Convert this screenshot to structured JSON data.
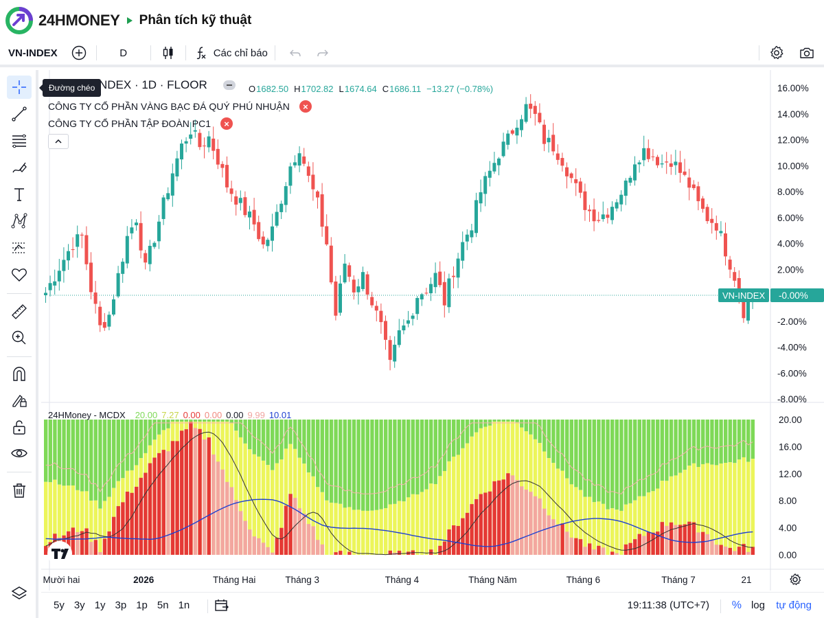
{
  "header": {
    "logo_text": "24HMONEY",
    "page_title": "Phân tích kỹ thuật"
  },
  "toolbar": {
    "symbol": "VN-INDEX",
    "interval": "D",
    "indicators_label": "Các chỉ báo"
  },
  "sidebar": {
    "tooltip": "Đường chéo",
    "tools": [
      "crosshair-icon",
      "trend-line-icon",
      "fib-icon",
      "brush-icon",
      "text-icon",
      "pattern-icon",
      "prediction-icon",
      "favorite-icon",
      "ruler-icon",
      "zoom-in-icon",
      "magnet-icon",
      "lock-draw-icon",
      "unlock-icon",
      "eye-icon",
      "trash-icon",
      "layers-icon"
    ]
  },
  "legend": {
    "symbol_title": "VN-INDEX · 1D · FLOOR",
    "ohlc": [
      {
        "key": "O",
        "value": "1682.50"
      },
      {
        "key": "H",
        "value": "1702.82"
      },
      {
        "key": "L",
        "value": "1674.64"
      },
      {
        "key": "C",
        "value": "1686.11"
      }
    ],
    "change": "−13.27 (−0.78%)",
    "compare": [
      "CÔNG TY CỔ PHẦN VÀNG BẠC ĐÁ QUÝ PHÚ NHUẬN",
      "CÔNG TY CỔ PHẦN TẬP ĐOÀN PC1"
    ]
  },
  "indicator": {
    "name": "24HMoney - MCDX",
    "values": [
      {
        "v": "20.00",
        "color": "#7ed957"
      },
      {
        "v": "7.27",
        "color": "#c8d64a"
      },
      {
        "v": "0.00",
        "color": "#e53935"
      },
      {
        "v": "0.00",
        "color": "#f08a80"
      },
      {
        "v": "0.00",
        "color": "#131722"
      },
      {
        "v": "9.99",
        "color": "#f0a5a0"
      },
      {
        "v": "10.01",
        "color": "#1e40d0"
      }
    ]
  },
  "axes": {
    "price_ticks": [
      "16.00%",
      "14.00%",
      "12.00%",
      "10.00%",
      "8.00%",
      "6.00%",
      "4.00%",
      "2.00%",
      "-0.00%",
      "-2.00%",
      "-4.00%",
      "-6.00%",
      "-8.00%"
    ],
    "price_tick_values": [
      16,
      14,
      12,
      10,
      8,
      6,
      4,
      2,
      0,
      -2,
      -4,
      -6,
      -8
    ],
    "price_marker_label": "VN-INDEX",
    "price_marker_value": "-0.00%",
    "ind_ticks": [
      "20.00",
      "16.00",
      "12.00",
      "8.00",
      "4.00",
      "0.00"
    ],
    "ind_tick_values": [
      20,
      16,
      12,
      8,
      4,
      0
    ],
    "time_labels": [
      {
        "label": "g Mười hai",
        "bar": 3,
        "bold": false
      },
      {
        "label": "2026",
        "bar": 22,
        "bold": true
      },
      {
        "label": "Tháng Hai",
        "bar": 42,
        "bold": false
      },
      {
        "label": "Tháng 3",
        "bar": 57,
        "bold": false
      },
      {
        "label": "Tháng 4",
        "bar": 79,
        "bold": false
      },
      {
        "label": "Tháng Năm",
        "bar": 99,
        "bold": false
      },
      {
        "label": "Tháng 6",
        "bar": 119,
        "bold": false
      },
      {
        "label": "Tháng 7",
        "bar": 140,
        "bold": false
      },
      {
        "label": "21",
        "bar": 155,
        "bold": false
      }
    ]
  },
  "bottom_bar": {
    "ranges": [
      "5y",
      "3y",
      "1y",
      "3p",
      "1p",
      "5n",
      "1n"
    ],
    "clock": "19:11:38 (UTC+7)",
    "percent_label": "%",
    "log_label": "log",
    "auto_label": "tự động"
  },
  "colors": {
    "up": "#26a69a",
    "down": "#ef5350",
    "ind_green": "#7ed957",
    "ind_yellow": "#ecf55a",
    "ind_red": "#e53935",
    "ind_pink": "#f3a79f",
    "blue_line": "#1e40d0",
    "dark_line": "#333333",
    "price_marker": "#26a69a"
  },
  "chart_data": {
    "type": "candlestick",
    "unit": "percent change",
    "ylim": [
      -8,
      16
    ],
    "anchors": [
      [
        0,
        0.2
      ],
      [
        3,
        2.2
      ],
      [
        6,
        4.0
      ],
      [
        8,
        4.5
      ],
      [
        10,
        0.5
      ],
      [
        12,
        -2.5
      ],
      [
        14,
        -1.5
      ],
      [
        16,
        1.5
      ],
      [
        18,
        4.5
      ],
      [
        20,
        6.0
      ],
      [
        22,
        2.0
      ],
      [
        24,
        4.5
      ],
      [
        26,
        7.0
      ],
      [
        28,
        9.5
      ],
      [
        30,
        11.5
      ],
      [
        32,
        12.8
      ],
      [
        34,
        11.5
      ],
      [
        36,
        12.2
      ],
      [
        38,
        10.5
      ],
      [
        40,
        8.5
      ],
      [
        42,
        7.5
      ],
      [
        44,
        6.5
      ],
      [
        46,
        5.5
      ],
      [
        48,
        3.8
      ],
      [
        50,
        5.0
      ],
      [
        52,
        7.5
      ],
      [
        54,
        10.0
      ],
      [
        56,
        11.5
      ],
      [
        58,
        9.0
      ],
      [
        60,
        7.0
      ],
      [
        62,
        4.0
      ],
      [
        63,
        1.0
      ],
      [
        64,
        -1.5
      ],
      [
        66,
        2.5
      ],
      [
        68,
        0.5
      ],
      [
        70,
        1.5
      ],
      [
        72,
        -0.5
      ],
      [
        74,
        -2.5
      ],
      [
        76,
        -5.5
      ],
      [
        78,
        -3.0
      ],
      [
        80,
        -2.0
      ],
      [
        82,
        0.0
      ],
      [
        84,
        0.5
      ],
      [
        86,
        1.5
      ],
      [
        88,
        -0.5
      ],
      [
        90,
        2.0
      ],
      [
        92,
        4.0
      ],
      [
        94,
        5.5
      ],
      [
        96,
        8.0
      ],
      [
        98,
        9.5
      ],
      [
        100,
        11.0
      ],
      [
        102,
        12.0
      ],
      [
        104,
        13.5
      ],
      [
        106,
        14.5
      ],
      [
        108,
        13.8
      ],
      [
        110,
        12.0
      ],
      [
        112,
        11.5
      ],
      [
        114,
        10.5
      ],
      [
        116,
        9.0
      ],
      [
        118,
        7.5
      ],
      [
        120,
        6.5
      ],
      [
        122,
        6.0
      ],
      [
        124,
        6.5
      ],
      [
        126,
        7.5
      ],
      [
        128,
        8.5
      ],
      [
        130,
        10.5
      ],
      [
        132,
        11.2
      ],
      [
        134,
        10.8
      ],
      [
        136,
        10.2
      ],
      [
        138,
        10.5
      ],
      [
        140,
        9.5
      ],
      [
        142,
        8.5
      ],
      [
        144,
        7.0
      ],
      [
        146,
        6.0
      ],
      [
        148,
        5.5
      ],
      [
        150,
        3.5
      ],
      [
        152,
        1.5
      ],
      [
        154,
        -1.2
      ],
      [
        156,
        0.2
      ]
    ],
    "mcdx_phases": [
      [
        0,
        6,
        2
      ],
      [
        8,
        10,
        4
      ],
      [
        12,
        14,
        1
      ],
      [
        16,
        22,
        7
      ],
      [
        24,
        30,
        14
      ],
      [
        32,
        34,
        19
      ],
      [
        36,
        40,
        17
      ],
      [
        42,
        44,
        8
      ],
      [
        46,
        48,
        3
      ],
      [
        50,
        52,
        0
      ],
      [
        54,
        57,
        9
      ],
      [
        58,
        60,
        5
      ],
      [
        62,
        64,
        0
      ],
      [
        68,
        80,
        0
      ],
      [
        82,
        84,
        0
      ],
      [
        86,
        88,
        0.5
      ],
      [
        90,
        94,
        4
      ],
      [
        96,
        100,
        9
      ],
      [
        102,
        106,
        12
      ],
      [
        108,
        112,
        9
      ],
      [
        114,
        118,
        4
      ],
      [
        120,
        124,
        1
      ],
      [
        126,
        130,
        0
      ],
      [
        132,
        136,
        3
      ],
      [
        138,
        142,
        5
      ],
      [
        144,
        148,
        4
      ],
      [
        150,
        156,
        1
      ]
    ]
  }
}
